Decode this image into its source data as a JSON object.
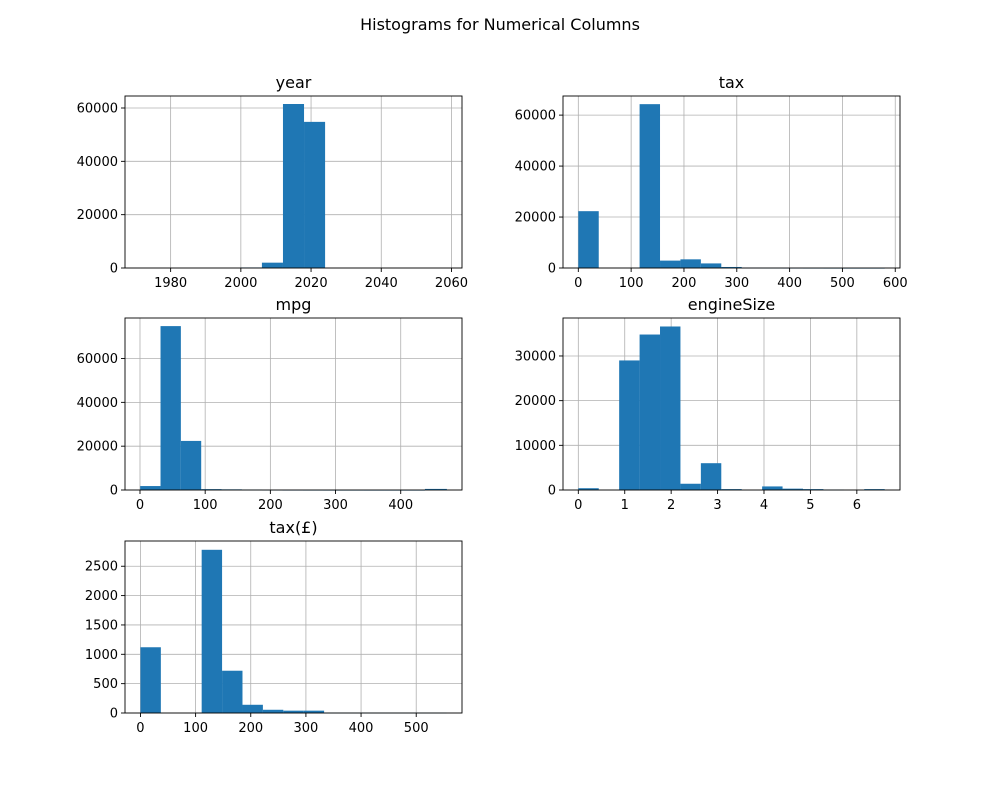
{
  "figure": {
    "suptitle": "Histograms for Numerical Columns",
    "bar_color": "#1f77b4",
    "grid_color": "#b0b0b0"
  },
  "chart_data": [
    {
      "type": "bar",
      "title": "year",
      "xlabel": "",
      "ylabel": "",
      "bin_edges": [
        1970,
        1976,
        1982,
        1988,
        1994,
        2000,
        2006,
        2012,
        2018,
        2024,
        2030,
        2036,
        2042,
        2048,
        2054,
        2060
      ],
      "values": [
        0,
        0,
        0,
        0,
        0,
        200,
        2000,
        61500,
        54800,
        0,
        0,
        0,
        0,
        0,
        0
      ],
      "xlim": [
        1967,
        2063
      ],
      "ylim": [
        0,
        64500
      ],
      "xticks": [
        1980,
        2000,
        2020,
        2040,
        2060
      ],
      "yticks": [
        0,
        20000,
        40000,
        60000
      ],
      "xtick_labels": [
        "1980",
        "2000",
        "2020",
        "2040",
        "2060"
      ],
      "ytick_labels": [
        "0",
        "20000",
        "40000",
        "60000"
      ],
      "grid": true
    },
    {
      "type": "bar",
      "title": "tax",
      "xlabel": "",
      "ylabel": "",
      "bin_edges": [
        0,
        38.67,
        77.33,
        116,
        154.67,
        193.33,
        232,
        270.67,
        309.33,
        348,
        386.67,
        425.33,
        464,
        502.67,
        541.33,
        580
      ],
      "values": [
        22300,
        0,
        0,
        64300,
        2900,
        3400,
        1800,
        400,
        100,
        50,
        30,
        20,
        10,
        5,
        5
      ],
      "xlim": [
        -29,
        609
      ],
      "ylim": [
        0,
        67500
      ],
      "xticks": [
        0,
        100,
        200,
        300,
        400,
        500,
        600
      ],
      "yticks": [
        0,
        20000,
        40000,
        60000
      ],
      "xtick_labels": [
        "0",
        "100",
        "200",
        "300",
        "400",
        "500",
        "600"
      ],
      "ytick_labels": [
        "0",
        "20000",
        "40000",
        "60000"
      ],
      "grid": true
    },
    {
      "type": "bar",
      "title": "mpg",
      "xlabel": "",
      "ylabel": "",
      "bin_edges": [
        0.3,
        31.5,
        62.7,
        93.9,
        125.1,
        156.3,
        187.5,
        218.7,
        249.9,
        281.1,
        312.3,
        343.5,
        374.7,
        405.9,
        437.1,
        470.8
      ],
      "values": [
        1800,
        74800,
        22400,
        400,
        300,
        200,
        50,
        30,
        20,
        10,
        10,
        5,
        5,
        5,
        500
      ],
      "xlim": [
        -23,
        494
      ],
      "ylim": [
        0,
        78500
      ],
      "xticks": [
        0,
        100,
        200,
        300,
        400
      ],
      "yticks": [
        0,
        20000,
        40000,
        60000
      ],
      "xtick_labels": [
        "0",
        "100",
        "200",
        "300",
        "400"
      ],
      "ytick_labels": [
        "0",
        "20000",
        "40000",
        "60000"
      ],
      "grid": true
    },
    {
      "type": "bar",
      "title": "engineSize",
      "xlabel": "",
      "ylabel": "",
      "bin_edges": [
        0,
        0.44,
        0.88,
        1.32,
        1.76,
        2.2,
        2.64,
        3.08,
        3.52,
        3.96,
        4.4,
        4.84,
        5.28,
        5.72,
        6.16,
        6.6
      ],
      "values": [
        400,
        0,
        29000,
        34800,
        36600,
        1400,
        6000,
        200,
        0,
        800,
        300,
        200,
        100,
        0,
        200
      ],
      "xlim": [
        -0.33,
        6.93
      ],
      "ylim": [
        0,
        38500
      ],
      "xticks": [
        0,
        1,
        2,
        3,
        4,
        5,
        6
      ],
      "yticks": [
        0,
        10000,
        20000,
        30000
      ],
      "xtick_labels": [
        "0",
        "1",
        "2",
        "3",
        "4",
        "5",
        "6"
      ],
      "ytick_labels": [
        "0",
        "10000",
        "20000",
        "30000"
      ],
      "grid": true
    },
    {
      "type": "bar",
      "title": "tax(£)",
      "xlabel": "",
      "ylabel": "",
      "bin_edges": [
        0,
        37,
        74,
        111,
        148,
        185,
        222,
        259,
        296,
        333,
        370,
        407,
        444,
        481,
        518,
        555
      ],
      "values": [
        1120,
        0,
        0,
        2780,
        720,
        140,
        55,
        40,
        40,
        5,
        5,
        5,
        5,
        5,
        5
      ],
      "xlim": [
        -28,
        583
      ],
      "ylim": [
        0,
        2930
      ],
      "xticks": [
        0,
        100,
        200,
        300,
        400,
        500
      ],
      "yticks": [
        0,
        500,
        1000,
        1500,
        2000,
        2500
      ],
      "xtick_labels": [
        "0",
        "100",
        "200",
        "300",
        "400",
        "500"
      ],
      "ytick_labels": [
        "0",
        "500",
        "1000",
        "1500",
        "2000",
        "2500"
      ],
      "grid": true
    }
  ]
}
